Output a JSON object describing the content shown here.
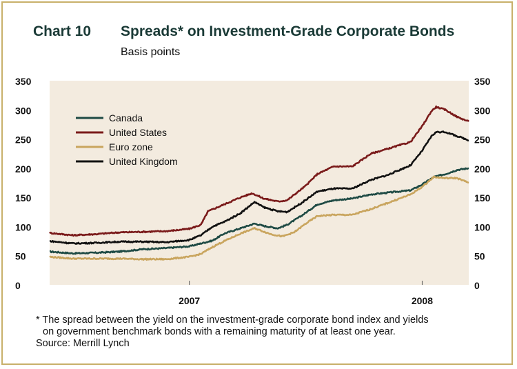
{
  "header": {
    "chart_number": "Chart 10",
    "title": "Spreads* on Investment-Grade Corporate Bonds",
    "subtitle": "Basis points"
  },
  "footnote": {
    "line1": "* The spread between the yield on the investment-grade corporate bond index and yields",
    "line2": "on government benchmark bonds with a remaining maturity of at least one year.",
    "source": "Source: Merrill Lynch"
  },
  "colors": {
    "plot_background": "#f3ebdf",
    "frame": "#c8b06a",
    "canada": "#1e4a44",
    "united_states": "#7a1a1a",
    "euro_zone": "#c9a55e",
    "united_kingdom": "#111111"
  },
  "chart_data": {
    "type": "line",
    "title": "Spreads* on Investment-Grade Corporate Bonds",
    "ylabel": "Basis points",
    "xlabel": "",
    "ylim": [
      0,
      350
    ],
    "y_ticks": [
      "0",
      "50",
      "100",
      "150",
      "200",
      "250",
      "300",
      "350"
    ],
    "y_tick_values": [
      0,
      50,
      100,
      150,
      200,
      250,
      300,
      350
    ],
    "xlim": [
      2006.4,
      2008.2
    ],
    "x_ticks": [
      {
        "label": "2007",
        "value": 2007.0
      },
      {
        "label": "2008",
        "value": 2008.0
      }
    ],
    "grid": false,
    "legend_position": "top-left",
    "series": [
      {
        "name": "Canada",
        "color": "#1e4a44",
        "points": [
          [
            2006.4,
            57
          ],
          [
            2006.5,
            54
          ],
          [
            2006.6,
            55
          ],
          [
            2006.7,
            57
          ],
          [
            2006.8,
            61
          ],
          [
            2006.9,
            63
          ],
          [
            2007.0,
            66
          ],
          [
            2007.1,
            76
          ],
          [
            2007.15,
            88
          ],
          [
            2007.22,
            97
          ],
          [
            2007.28,
            105
          ],
          [
            2007.32,
            101
          ],
          [
            2007.38,
            97
          ],
          [
            2007.42,
            103
          ],
          [
            2007.48,
            118
          ],
          [
            2007.55,
            138
          ],
          [
            2007.62,
            145
          ],
          [
            2007.7,
            148
          ],
          [
            2007.78,
            155
          ],
          [
            2007.85,
            158
          ],
          [
            2007.95,
            162
          ],
          [
            2008.0,
            172
          ],
          [
            2008.05,
            185
          ],
          [
            2008.1,
            190
          ],
          [
            2008.15,
            197
          ],
          [
            2008.2,
            200
          ]
        ]
      },
      {
        "name": "United States",
        "color": "#7a1a1a",
        "points": [
          [
            2006.4,
            89
          ],
          [
            2006.5,
            85
          ],
          [
            2006.6,
            87
          ],
          [
            2006.7,
            90
          ],
          [
            2006.8,
            91
          ],
          [
            2006.9,
            92
          ],
          [
            2007.0,
            96
          ],
          [
            2007.05,
            103
          ],
          [
            2007.08,
            126
          ],
          [
            2007.15,
            138
          ],
          [
            2007.22,
            150
          ],
          [
            2007.27,
            157
          ],
          [
            2007.32,
            148
          ],
          [
            2007.38,
            143
          ],
          [
            2007.42,
            145
          ],
          [
            2007.5,
            170
          ],
          [
            2007.55,
            190
          ],
          [
            2007.62,
            203
          ],
          [
            2007.7,
            203
          ],
          [
            2007.78,
            225
          ],
          [
            2007.85,
            233
          ],
          [
            2007.95,
            245
          ],
          [
            2008.0,
            272
          ],
          [
            2008.04,
            298
          ],
          [
            2008.06,
            305
          ],
          [
            2008.1,
            300
          ],
          [
            2008.15,
            288
          ],
          [
            2008.2,
            280
          ]
        ]
      },
      {
        "name": "Euro zone",
        "color": "#c9a55e",
        "points": [
          [
            2006.4,
            48
          ],
          [
            2006.5,
            45
          ],
          [
            2006.6,
            45
          ],
          [
            2006.7,
            45
          ],
          [
            2006.8,
            44
          ],
          [
            2006.9,
            44
          ],
          [
            2007.0,
            48
          ],
          [
            2007.05,
            53
          ],
          [
            2007.1,
            65
          ],
          [
            2007.15,
            75
          ],
          [
            2007.22,
            88
          ],
          [
            2007.28,
            97
          ],
          [
            2007.35,
            87
          ],
          [
            2007.4,
            83
          ],
          [
            2007.45,
            90
          ],
          [
            2007.5,
            105
          ],
          [
            2007.55,
            118
          ],
          [
            2007.62,
            120
          ],
          [
            2007.7,
            120
          ],
          [
            2007.78,
            130
          ],
          [
            2007.85,
            140
          ],
          [
            2007.95,
            155
          ],
          [
            2008.0,
            168
          ],
          [
            2008.05,
            185
          ],
          [
            2008.1,
            183
          ],
          [
            2008.15,
            183
          ],
          [
            2008.2,
            175
          ]
        ]
      },
      {
        "name": "United Kingdom",
        "color": "#111111",
        "points": [
          [
            2006.4,
            75
          ],
          [
            2006.5,
            71
          ],
          [
            2006.6,
            72
          ],
          [
            2006.7,
            74
          ],
          [
            2006.8,
            74
          ],
          [
            2006.9,
            73
          ],
          [
            2007.0,
            77
          ],
          [
            2007.05,
            85
          ],
          [
            2007.1,
            100
          ],
          [
            2007.15,
            108
          ],
          [
            2007.22,
            123
          ],
          [
            2007.28,
            142
          ],
          [
            2007.32,
            133
          ],
          [
            2007.38,
            126
          ],
          [
            2007.42,
            125
          ],
          [
            2007.48,
            140
          ],
          [
            2007.55,
            160
          ],
          [
            2007.62,
            165
          ],
          [
            2007.7,
            165
          ],
          [
            2007.78,
            180
          ],
          [
            2007.85,
            188
          ],
          [
            2007.95,
            205
          ],
          [
            2008.0,
            230
          ],
          [
            2008.04,
            255
          ],
          [
            2008.06,
            262
          ],
          [
            2008.1,
            262
          ],
          [
            2008.15,
            255
          ],
          [
            2008.2,
            248
          ]
        ]
      }
    ]
  }
}
